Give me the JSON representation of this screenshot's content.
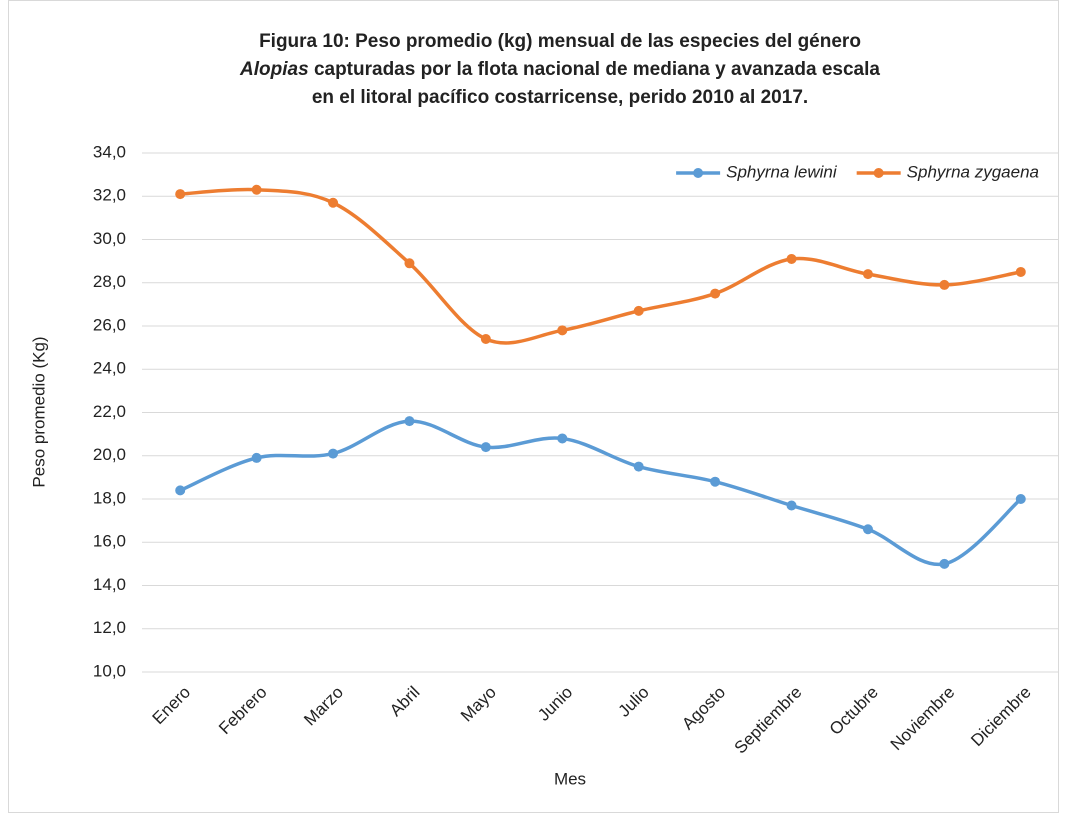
{
  "chart_data": {
    "type": "line",
    "title": [
      "Figura 10: Peso promedio (kg) mensual de las especies del género",
      "Alopias",
      "capturadas por la flota nacional de mediana y avanzada escala",
      "en el litoral pacífico costarricense, perido 2010  al 2017."
    ],
    "x_label": "Mes",
    "y_label": "Peso promedio (Kg)",
    "categories": [
      "Enero",
      "Febrero",
      "Marzo",
      "Abril",
      "Mayo",
      "Junio",
      "Julio",
      "Agosto",
      "Septiembre",
      "Octubre",
      "Noviembre",
      "Diciembre"
    ],
    "series": [
      {
        "name": "Sphyrna lewini",
        "color": "#5b9bd5",
        "values": [
          18.4,
          19.9,
          20.1,
          21.6,
          20.4,
          20.8,
          19.5,
          18.8,
          17.7,
          16.6,
          15.0,
          18.0
        ]
      },
      {
        "name": "Sphyrna zygaena",
        "color": "#ed7d31",
        "values": [
          32.1,
          32.3,
          31.7,
          28.9,
          25.4,
          25.8,
          26.7,
          27.5,
          29.1,
          28.4,
          27.9,
          28.5
        ]
      }
    ],
    "ylim": [
      10,
      34
    ],
    "yticks": [
      {
        "value": 10,
        "label": "10,0"
      },
      {
        "value": 12,
        "label": "12,0"
      },
      {
        "value": 14,
        "label": "14,0"
      },
      {
        "value": 16,
        "label": "16,0"
      },
      {
        "value": 18,
        "label": "18,0"
      },
      {
        "value": 20,
        "label": "20,0"
      },
      {
        "value": 22,
        "label": "22,0"
      },
      {
        "value": 24,
        "label": "24,0"
      },
      {
        "value": 26,
        "label": "26,0"
      },
      {
        "value": 28,
        "label": "28,0"
      },
      {
        "value": 30,
        "label": "30,0"
      },
      {
        "value": 32,
        "label": "32,0"
      },
      {
        "value": 34,
        "label": "34,0"
      }
    ],
    "grid": true,
    "legend": "top-right",
    "smooth": true
  }
}
